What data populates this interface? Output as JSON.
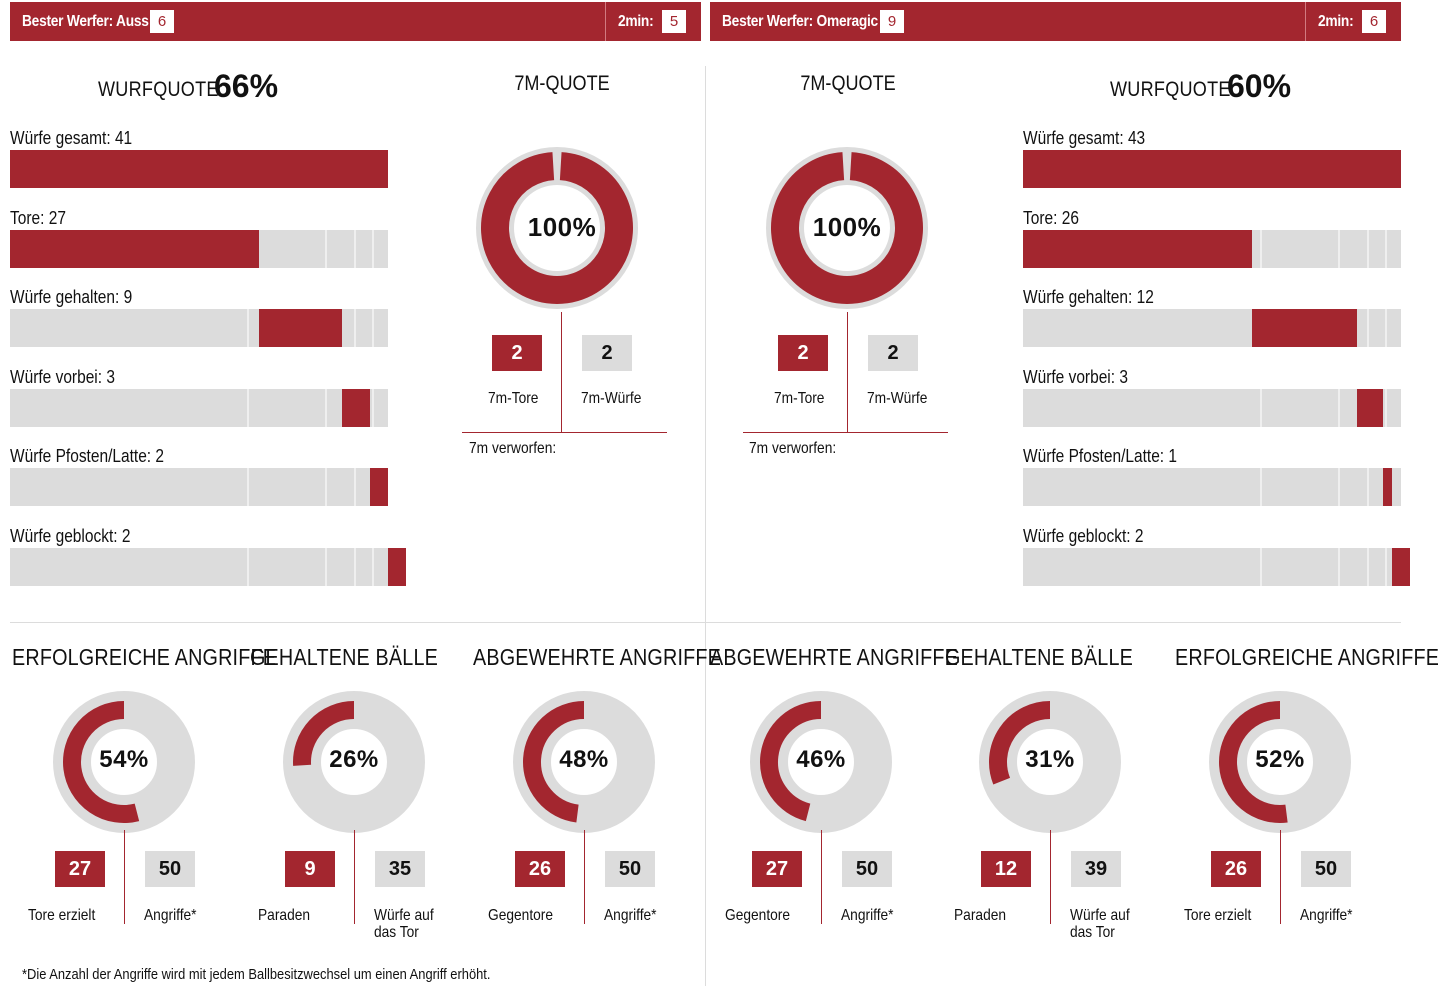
{
  "colors": {
    "accent": "#a3262f",
    "grey": "#dcdcdc"
  },
  "top": {
    "left": {
      "label": "Bester Werfer: Auss",
      "value": "6",
      "twomin_label": "2min:",
      "twomin_value": "5"
    },
    "right": {
      "label": "Bester Werfer: Omeragic",
      "value": "9",
      "twomin_label": "2min:",
      "twomin_value": "6"
    }
  },
  "teams": {
    "left": {
      "wurfquote_label": "WURFQUOTE:",
      "wurfquote_value": "66%",
      "stats": [
        {
          "label": "Würfe gesamt: 41"
        },
        {
          "label": "Tore: 27"
        },
        {
          "label": "Würfe gehalten: 9"
        },
        {
          "label": "Würfe vorbei: 3"
        },
        {
          "label": "Würfe Pfosten/Latte: 2"
        },
        {
          "label": "Würfe geblockt: 2"
        }
      ],
      "sevenm": {
        "title": "7M-QUOTE",
        "pct": "100%",
        "tore": "2",
        "wuerfe": "2",
        "tore_label": "7m-Tore",
        "wuerfe_label": "7m-Würfe",
        "verworfen_label": "7m verworfen:"
      }
    },
    "right": {
      "wurfquote_label": "WURFQUOTE:",
      "wurfquote_value": "60%",
      "stats": [
        {
          "label": "Würfe gesamt: 43"
        },
        {
          "label": "Tore: 26"
        },
        {
          "label": "Würfe gehalten: 12"
        },
        {
          "label": "Würfe vorbei: 3"
        },
        {
          "label": "Würfe Pfosten/Latte: 1"
        },
        {
          "label": "Würfe geblockt: 2"
        }
      ],
      "sevenm": {
        "title": "7M-QUOTE",
        "pct": "100%",
        "tore": "2",
        "wuerfe": "2",
        "tore_label": "7m-Tore",
        "wuerfe_label": "7m-Würfe",
        "verworfen_label": "7m verworfen:"
      }
    }
  },
  "bottom": [
    {
      "title": "ERFOLGREICHE ANGRIFFE",
      "pct": "54%",
      "a": "27",
      "b": "50",
      "a_label": "Tore erzielt",
      "b_label": "Angriffe*"
    },
    {
      "title": "GEHALTENE BÄLLE",
      "pct": "26%",
      "a": "9",
      "b": "35",
      "a_label": "Paraden",
      "b_label": "Würfe auf das Tor"
    },
    {
      "title": "ABGEWEHRTE ANGRIFFE",
      "pct": "48%",
      "a": "26",
      "b": "50",
      "a_label": "Gegentore",
      "b_label": "Angriffe*"
    },
    {
      "title": "ABGEWEHRTE ANGRIFFE",
      "pct": "46%",
      "a": "27",
      "b": "50",
      "a_label": "Gegentore",
      "b_label": "Angriffe*"
    },
    {
      "title": "GEHALTENE BÄLLE",
      "pct": "31%",
      "a": "12",
      "b": "39",
      "a_label": "Paraden",
      "b_label": "Würfe auf das Tor"
    },
    {
      "title": "ERFOLGREICHE ANGRIFFE",
      "pct": "52%",
      "a": "26",
      "b": "50",
      "a_label": "Tore erzielt",
      "b_label": "Angriffe*"
    }
  ],
  "footnote": "*Die Anzahl der Angriffe wird mit jedem Ballbesitzwechsel um einen Angriff erhöht.",
  "chart_data": [
    {
      "type": "bar",
      "categories": [
        "Würfe gesamt",
        "Tore",
        "Würfe gehalten",
        "Würfe vorbei",
        "Würfe Pfosten/Latte",
        "Würfe geblockt"
      ],
      "values": [
        41,
        27,
        9,
        3,
        2,
        2
      ],
      "title": "",
      "xlabel": "",
      "ylabel": ""
    },
    {
      "type": "pie",
      "values": [
        100,
        0
      ],
      "title": "7M-QUOTE"
    },
    {
      "type": "pie",
      "values": [
        54,
        46
      ],
      "title": "ERFOLGREICHE ANGRIFFE"
    },
    {
      "type": "pie",
      "values": [
        26,
        74
      ],
      "title": "GEHALTENE BÄLLE"
    },
    {
      "type": "pie",
      "values": [
        48,
        52
      ],
      "title": "ABGEWEHRTE ANGRIFFE"
    },
    {
      "type": "bar",
      "categories": [
        "Würfe gesamt",
        "Tore",
        "Würfe gehalten",
        "Würfe vorbei",
        "Würfe Pfosten/Latte",
        "Würfe geblockt"
      ],
      "values": [
        43,
        26,
        12,
        3,
        1,
        2
      ],
      "title": "",
      "xlabel": "",
      "ylabel": ""
    },
    {
      "type": "pie",
      "values": [
        100,
        0
      ],
      "title": "7M-QUOTE"
    },
    {
      "type": "pie",
      "values": [
        46,
        54
      ],
      "title": "ABGEWEHRTE ANGRIFFE"
    },
    {
      "type": "pie",
      "values": [
        31,
        69
      ],
      "title": "GEHALTENE BÄLLE"
    },
    {
      "type": "pie",
      "values": [
        52,
        48
      ],
      "title": "ERFOLGREICHE ANGRIFFE"
    }
  ]
}
